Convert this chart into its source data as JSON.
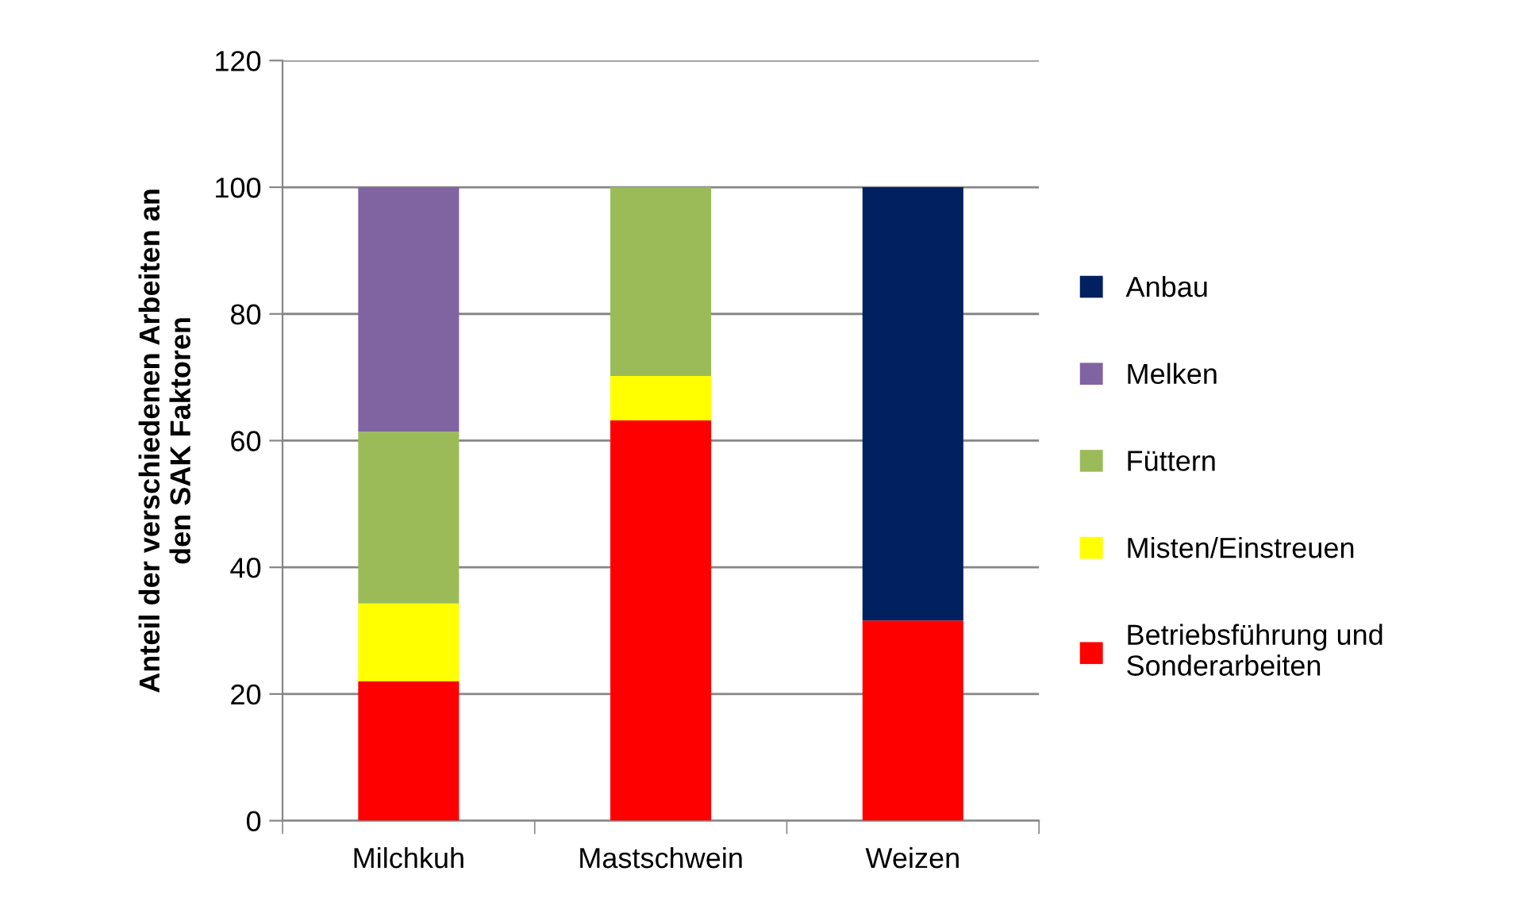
{
  "chart_data": {
    "type": "bar",
    "stacked": true,
    "ylabel": "Anteil der verschiedenen Arbeiten an\nden SAK Faktoren",
    "categories": [
      "Milchkuh",
      "Mastschwein",
      "Weizen"
    ],
    "series": [
      {
        "name": "Betriebsführung und\nSonderarbeiten",
        "color": "#ff0000",
        "values": [
          22,
          63.2,
          31.6
        ]
      },
      {
        "name": "Misten/Einstreuen",
        "color": "#ffff00",
        "values": [
          12.3,
          7,
          null
        ]
      },
      {
        "name": "Füttern",
        "color": "#9bbb59",
        "values": [
          27.1,
          29.8,
          null
        ]
      },
      {
        "name": "Melken",
        "color": "#8064a2",
        "values": [
          38.6,
          null,
          null
        ]
      },
      {
        "name": "Anbau",
        "color": "#002060",
        "values": [
          null,
          null,
          68.4
        ]
      }
    ],
    "ylim": [
      0,
      120
    ],
    "yticks": [
      0,
      20,
      40,
      60,
      80,
      100,
      120
    ],
    "grid": "y",
    "legend": "right"
  }
}
